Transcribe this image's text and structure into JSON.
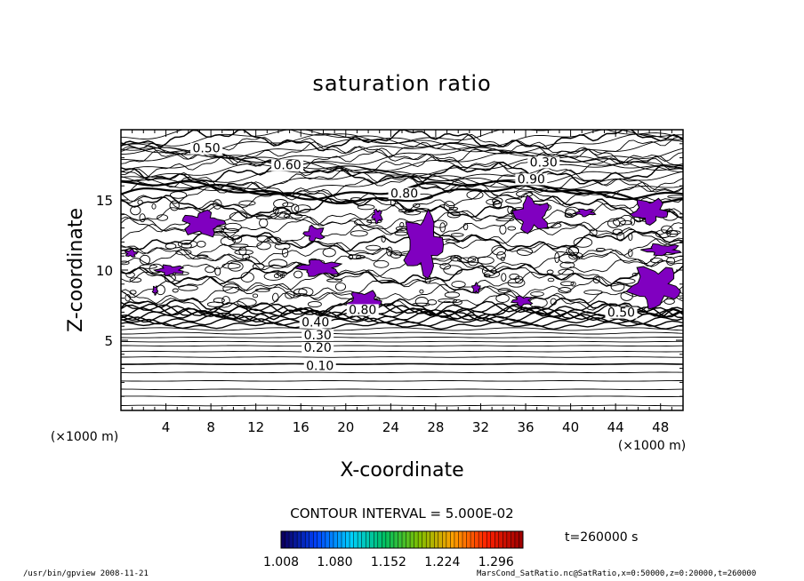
{
  "chart_data": {
    "type": "heatmap",
    "title": "saturation ratio",
    "xlabel": "X-coordinate",
    "ylabel": "Z-coordinate",
    "x_unit": "(×1000 m)",
    "z_unit": "(×1000 m)",
    "xlim": [
      0,
      50
    ],
    "ylim": [
      0,
      20
    ],
    "x_ticks": [
      4,
      8,
      12,
      16,
      20,
      24,
      28,
      32,
      36,
      40,
      44,
      48
    ],
    "y_ticks": [
      5,
      10,
      15
    ],
    "contour_interval_text": "CONTOUR INTERVAL = 5.000E-02",
    "time_text": "t=260000 s",
    "fill_color": "#8000c0",
    "contour_labels": [
      {
        "text": "0.10",
        "x": 17.7,
        "z": 3.0
      },
      {
        "text": "0.20",
        "x": 17.5,
        "z": 4.3
      },
      {
        "text": "0.30",
        "x": 17.5,
        "z": 5.2
      },
      {
        "text": "0.40",
        "x": 17.3,
        "z": 6.1
      },
      {
        "text": "0.50",
        "x": 7.6,
        "z": 18.5
      },
      {
        "text": "0.30",
        "x": 37.6,
        "z": 17.5
      },
      {
        "text": "0.60",
        "x": 14.8,
        "z": 17.3
      },
      {
        "text": "0.80",
        "x": 25.2,
        "z": 15.3
      },
      {
        "text": "0.90",
        "x": 36.5,
        "z": 16.3
      },
      {
        "text": "0.80",
        "x": 21.5,
        "z": 7.0
      },
      {
        "text": "0.50",
        "x": 44.5,
        "z": 6.8
      }
    ],
    "supersaturated_regions": [
      {
        "x": [
          5.2,
          9.3
        ],
        "z": [
          12.3,
          14.3
        ]
      },
      {
        "x": [
          16.2,
          18.2
        ],
        "z": [
          12.0,
          13.2
        ]
      },
      {
        "x": [
          22.3,
          23.3
        ],
        "z": [
          13.3,
          14.4
        ]
      },
      {
        "x": [
          25.0,
          28.8
        ],
        "z": [
          9.3,
          14.3
        ]
      },
      {
        "x": [
          34.8,
          38.3
        ],
        "z": [
          12.5,
          15.3
        ]
      },
      {
        "x": [
          40.3,
          42.3
        ],
        "z": [
          13.8,
          14.4
        ]
      },
      {
        "x": [
          45.3,
          48.8
        ],
        "z": [
          13.2,
          15.2
        ]
      },
      {
        "x": [
          15.5,
          19.8
        ],
        "z": [
          9.5,
          10.8
        ]
      },
      {
        "x": [
          20.0,
          23.3
        ],
        "z": [
          7.0,
          8.6
        ]
      },
      {
        "x": [
          31.2,
          32.0
        ],
        "z": [
          8.3,
          9.1
        ]
      },
      {
        "x": [
          34.7,
          36.7
        ],
        "z": [
          7.4,
          8.2
        ]
      },
      {
        "x": [
          45.0,
          50.0
        ],
        "z": [
          7.2,
          10.5
        ]
      },
      {
        "x": [
          46.3,
          50.0
        ],
        "z": [
          11.0,
          11.9
        ]
      },
      {
        "x": [
          0.3,
          1.5
        ],
        "z": [
          10.9,
          11.5
        ]
      },
      {
        "x": [
          3.0,
          5.8
        ],
        "z": [
          9.6,
          10.4
        ]
      },
      {
        "x": [
          2.8,
          3.3
        ],
        "z": [
          8.2,
          8.9
        ]
      }
    ],
    "colorbar": {
      "ticks": [
        "1.008",
        "1.080",
        "1.152",
        "1.224",
        "1.296"
      ],
      "range": [
        1.008,
        1.332
      ],
      "stops": [
        "#0a0060",
        "#0044ff",
        "#00d0ff",
        "#00c060",
        "#80c000",
        "#ffa000",
        "#ff2000",
        "#a00000"
      ]
    }
  },
  "footer": {
    "left": "/usr/bin/gpview   2008-11-21",
    "right": "MarsCond_SatRatio.nc@SatRatio,x=0:50000,z=0:20000,t=260000"
  }
}
